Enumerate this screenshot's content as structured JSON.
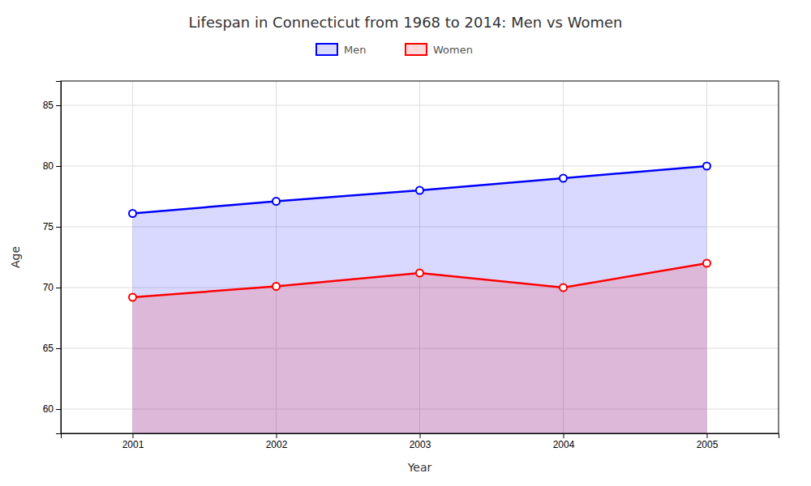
{
  "chart_data": {
    "type": "area",
    "title": "Lifespan in Connecticut from 1968 to 2014: Men vs Women",
    "x_label": "Year",
    "y_label": "Age",
    "x": [
      2001,
      2002,
      2003,
      2004,
      2005
    ],
    "series": [
      {
        "name": "Men",
        "color": "#0000ff",
        "marker": "circle",
        "values": [
          76.1,
          77.1,
          78.0,
          79.0,
          80.0
        ]
      },
      {
        "name": "Women",
        "color": "#ff0000",
        "marker": "circle",
        "values": [
          69.2,
          70.1,
          71.2,
          70.0,
          72.0
        ]
      }
    ],
    "xlim": [
      2000.5,
      2005.5
    ],
    "xticks": [
      2001,
      2002,
      2003,
      2004,
      2005
    ],
    "ylim": [
      58,
      87
    ],
    "yticks": [
      60,
      65,
      70,
      75,
      80,
      85
    ],
    "grid": true,
    "legend": "top"
  }
}
